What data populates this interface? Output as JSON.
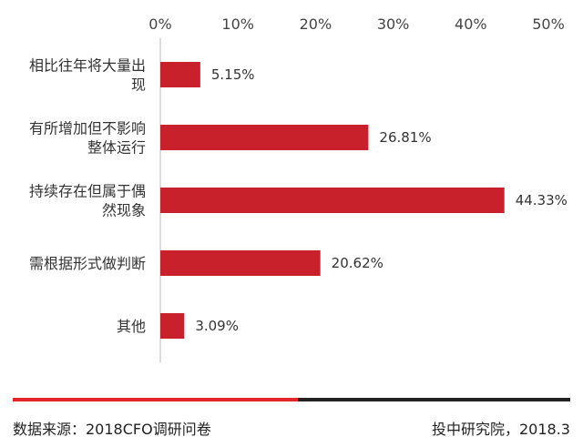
{
  "chart_data": {
    "type": "bar",
    "orientation": "horizontal",
    "categories": [
      [
        "相比往年将大量出",
        "现"
      ],
      [
        "有所增加但不影响",
        "整体运行"
      ],
      [
        "持续存在但属于偶",
        "然现象"
      ],
      [
        "需根据形式做判断"
      ],
      [
        "其他"
      ]
    ],
    "values": [
      5.15,
      26.81,
      44.33,
      20.62,
      3.09
    ],
    "value_labels": [
      "5.15%",
      "26.81%",
      "44.33%",
      "20.62%",
      "3.09%"
    ],
    "x_ticks": [
      "0%",
      "10%",
      "20%",
      "30%",
      "40%",
      "50%"
    ],
    "xlim": [
      0,
      50
    ],
    "axis_position": "top",
    "grid": false,
    "bar_color": "#c9212b"
  },
  "footer": {
    "source": "数据来源：2018CFO调研问卷",
    "credit": "投中研究院，2018.3"
  },
  "colors": {
    "rule_left": "#e3262b",
    "rule_right": "#222222"
  }
}
